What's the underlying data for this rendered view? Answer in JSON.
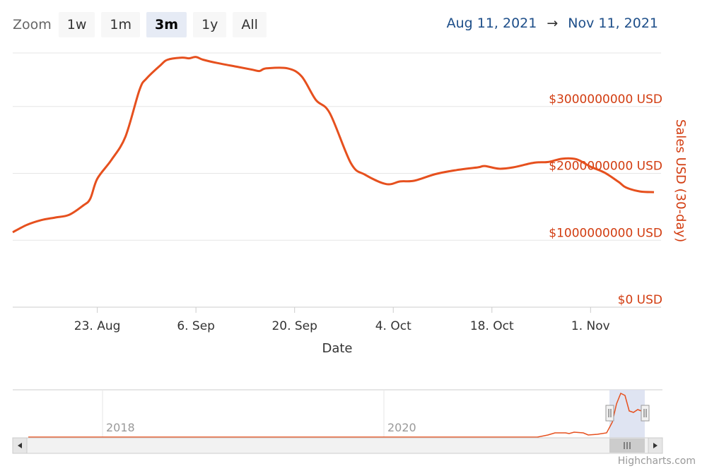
{
  "toolbar": {
    "zoom_label": "Zoom",
    "buttons": [
      {
        "label": "1w",
        "active": false
      },
      {
        "label": "1m",
        "active": false
      },
      {
        "label": "3m",
        "active": true
      },
      {
        "label": "1y",
        "active": false
      },
      {
        "label": "All",
        "active": false
      }
    ],
    "range_from": "Aug 11, 2021",
    "range_arrow": "→",
    "range_to": "Nov 11, 2021"
  },
  "credits": "Highcharts.com",
  "colors": {
    "series": "#e6501e",
    "axis_label": "#d23c10",
    "grid": "#e6e6e6",
    "navigator_mask": "#d9dff0"
  },
  "chart_data": {
    "type": "line",
    "title": "",
    "xlabel": "Date",
    "ylabel": "Sales USD (30-day)",
    "x_ticks": [
      {
        "label": "23. Aug",
        "date": "2021-08-23"
      },
      {
        "label": "6. Sep",
        "date": "2021-09-06"
      },
      {
        "label": "20. Sep",
        "date": "2021-09-20"
      },
      {
        "label": "4. Oct",
        "date": "2021-10-04"
      },
      {
        "label": "18. Oct",
        "date": "2021-10-18"
      },
      {
        "label": "1. Nov",
        "date": "2021-11-01"
      }
    ],
    "y_ticks": [
      {
        "label": "$0 USD",
        "value": 0
      },
      {
        "label": "$1000000000 USD",
        "value": 1000000000
      },
      {
        "label": "$2000000000 USD",
        "value": 2000000000
      },
      {
        "label": "$3000000000 USD",
        "value": 3000000000
      }
    ],
    "ylim": [
      0,
      3800000000
    ],
    "xlim": [
      "2021-08-11",
      "2021-11-11"
    ],
    "grid": true,
    "series": [
      {
        "x": [
          "2021-08-11",
          "2021-08-13",
          "2021-08-15",
          "2021-08-17",
          "2021-08-19",
          "2021-08-21",
          "2021-08-22",
          "2021-08-23",
          "2021-08-25",
          "2021-08-27",
          "2021-08-29",
          "2021-08-30",
          "2021-09-01",
          "2021-09-02",
          "2021-09-04",
          "2021-09-05",
          "2021-09-06",
          "2021-09-07",
          "2021-09-09",
          "2021-09-12",
          "2021-09-14",
          "2021-09-15",
          "2021-09-16",
          "2021-09-19",
          "2021-09-21",
          "2021-09-23",
          "2021-09-25",
          "2021-09-28",
          "2021-09-30",
          "2021-10-03",
          "2021-10-05",
          "2021-10-07",
          "2021-10-10",
          "2021-10-13",
          "2021-10-16",
          "2021-10-17",
          "2021-10-19",
          "2021-10-21",
          "2021-10-24",
          "2021-10-26",
          "2021-10-28",
          "2021-10-30",
          "2021-11-01",
          "2021-11-03",
          "2021-11-05",
          "2021-11-06",
          "2021-11-08",
          "2021-11-10"
        ],
        "values": [
          1120000000,
          1230000000,
          1300000000,
          1340000000,
          1380000000,
          1520000000,
          1620000000,
          1920000000,
          2200000000,
          2550000000,
          3250000000,
          3420000000,
          3620000000,
          3700000000,
          3730000000,
          3720000000,
          3740000000,
          3700000000,
          3650000000,
          3590000000,
          3550000000,
          3530000000,
          3570000000,
          3570000000,
          3450000000,
          3100000000,
          2900000000,
          2150000000,
          1980000000,
          1840000000,
          1880000000,
          1890000000,
          1990000000,
          2050000000,
          2090000000,
          2110000000,
          2070000000,
          2090000000,
          2160000000,
          2170000000,
          2220000000,
          2210000000,
          2100000000,
          2010000000,
          1870000000,
          1790000000,
          1730000000,
          1720000000
        ]
      }
    ],
    "navigator": {
      "x_ticks": [
        {
          "label": "2018"
        },
        {
          "label": "2020"
        }
      ]
    }
  }
}
